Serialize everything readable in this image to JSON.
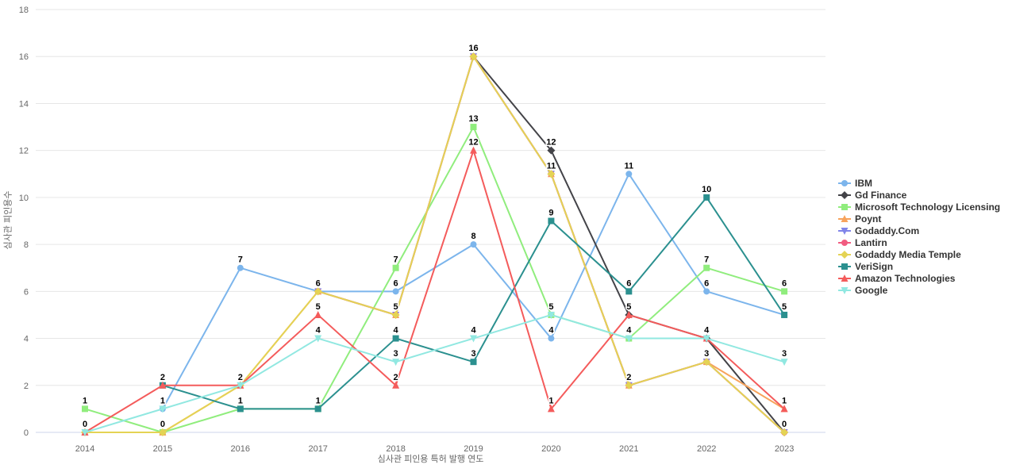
{
  "axes": {
    "y_title": "심사관 피인용수",
    "x_title": "심사관 피인용 특허 발행 연도"
  },
  "chart_data": {
    "type": "line",
    "title": "",
    "xlabel": "심사관 피인용 특허 발행 연도",
    "ylabel": "심사관 피인용수",
    "x": [
      "2014",
      "2015",
      "2016",
      "2017",
      "2018",
      "2019",
      "2020",
      "2021",
      "2022",
      "2023"
    ],
    "ylim": [
      0,
      18
    ],
    "y_ticks": [
      0,
      2,
      4,
      6,
      8,
      10,
      12,
      14,
      16,
      18
    ],
    "grid": true,
    "legend_position": "right",
    "data_labels": true,
    "series": [
      {
        "name": "IBM",
        "color": "#7cb5ec",
        "marker": "circle",
        "values": [
          null,
          1,
          7,
          6,
          6,
          8,
          4,
          11,
          6,
          5
        ]
      },
      {
        "name": "Gd Finance",
        "color": "#434348",
        "marker": "diamond",
        "values": [
          null,
          null,
          null,
          null,
          null,
          16,
          12,
          5,
          4,
          0
        ]
      },
      {
        "name": "Microsoft Technology Licensing",
        "color": "#90ed7d",
        "marker": "square",
        "values": [
          1,
          0,
          1,
          1,
          7,
          13,
          5,
          4,
          7,
          6
        ]
      },
      {
        "name": "Poynt",
        "color": "#f7a35c",
        "marker": "triangle",
        "values": [
          0,
          0,
          2,
          6,
          5,
          16,
          11,
          2,
          3,
          1
        ]
      },
      {
        "name": "Godaddy.Com",
        "color": "#8085e9",
        "marker": "triangle-down",
        "values": [
          null,
          null,
          null,
          6,
          5,
          16,
          11,
          2,
          3,
          0
        ]
      },
      {
        "name": "Lantirn",
        "color": "#f15c80",
        "marker": "circle",
        "values": [
          null,
          null,
          null,
          6,
          5,
          16,
          11,
          2,
          3,
          0
        ]
      },
      {
        "name": "Godaddy Media Temple",
        "color": "#e4d354",
        "marker": "diamond",
        "values": [
          0,
          0,
          2,
          6,
          5,
          16,
          11,
          2,
          3,
          0
        ]
      },
      {
        "name": "VeriSign",
        "color": "#2b908f",
        "marker": "square",
        "values": [
          null,
          2,
          1,
          1,
          4,
          3,
          9,
          6,
          10,
          5
        ]
      },
      {
        "name": "Amazon Technologies",
        "color": "#f45b5b",
        "marker": "triangle",
        "values": [
          0,
          2,
          2,
          5,
          2,
          12,
          1,
          5,
          4,
          1
        ]
      },
      {
        "name": "Google",
        "color": "#91e8e1",
        "marker": "triangle-down",
        "values": [
          0,
          1,
          2,
          4,
          3,
          4,
          5,
          4,
          4,
          3
        ]
      }
    ],
    "colors": {
      "grid_line": "#e6e6e6",
      "axis_line": "#ccd6eb",
      "tick_label": "#666666",
      "legend_text": "#333333",
      "data_label": "#000000"
    }
  }
}
